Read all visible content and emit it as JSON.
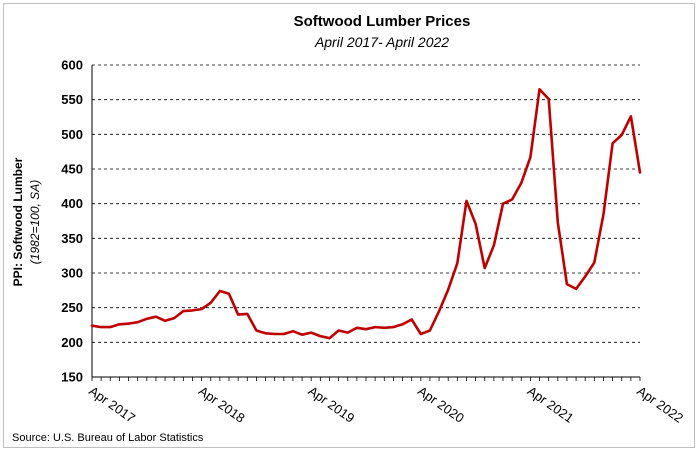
{
  "chart_data": {
    "type": "line",
    "title": "Softwood Lumber Prices",
    "subtitle": "April 2017- April 2022",
    "ylabel": "PPI: Softwood Lumber",
    "ylabel_sub": "(1982=100, SA)",
    "xlabel": "",
    "ylim": [
      150,
      600
    ],
    "yticks": [
      150,
      200,
      250,
      300,
      350,
      400,
      450,
      500,
      550,
      600
    ],
    "xtick_labels": [
      "Apr 2017",
      "Apr 2018",
      "Apr 2019",
      "Apr 2020",
      "Apr 2021",
      "Apr 2022"
    ],
    "grid": "horizontal dashed",
    "source": "Source: U.S. Bureau of Labor Statistics",
    "line_color": "#c00000",
    "series": [
      {
        "name": "PPI: Softwood Lumber",
        "x_start": "Apr 2017",
        "frequency": "monthly",
        "values": [
          224,
          222,
          222,
          226,
          227,
          229,
          234,
          237,
          231,
          235,
          245,
          246,
          248,
          257,
          274,
          270,
          240,
          241,
          217,
          213,
          212,
          212,
          216,
          211,
          214,
          209,
          206,
          217,
          214,
          221,
          219,
          222,
          221,
          222,
          226,
          233,
          212,
          217,
          245,
          276,
          314,
          404,
          371,
          307,
          340,
          400,
          406,
          430,
          467,
          565,
          551,
          373,
          284,
          277,
          295,
          315,
          385,
          487,
          499,
          526,
          445
        ]
      }
    ]
  }
}
